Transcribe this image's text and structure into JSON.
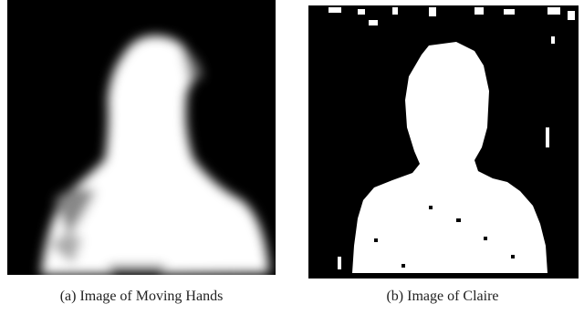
{
  "subfigures": [
    {
      "label": "(a)",
      "caption": "Image of Moving Hands"
    },
    {
      "label": "(b)",
      "caption": "Image of Claire"
    }
  ]
}
